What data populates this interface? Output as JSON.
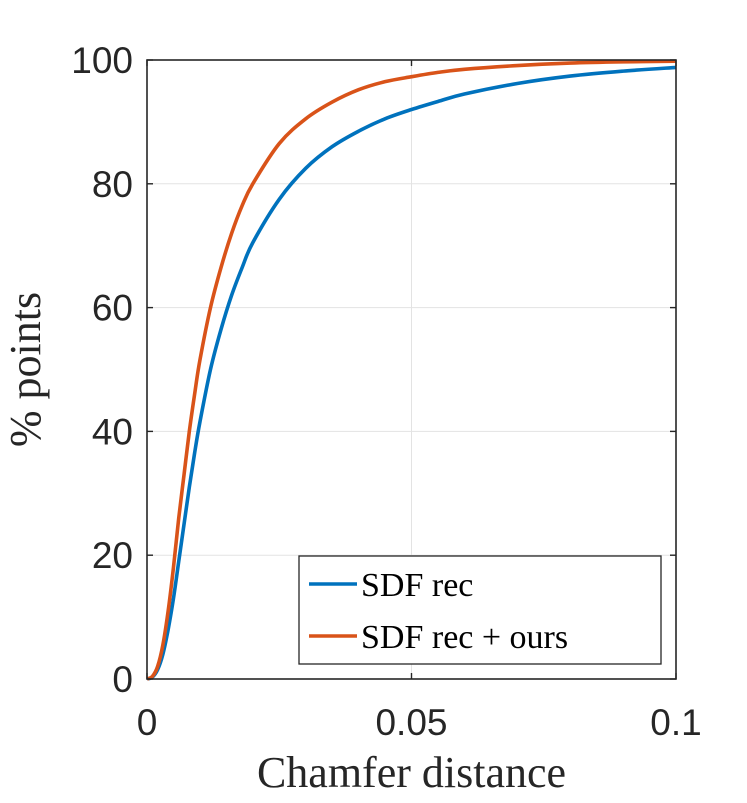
{
  "chart_data": {
    "type": "line",
    "xlabel": "Chamfer distance",
    "ylabel": "% points",
    "xlim": [
      0,
      0.1
    ],
    "ylim": [
      0,
      100
    ],
    "x_ticks": [
      0,
      0.05,
      0.1
    ],
    "x_tick_labels": [
      "0",
      "0.05",
      "0.1"
    ],
    "y_ticks": [
      0,
      20,
      40,
      60,
      80,
      100
    ],
    "y_tick_labels": [
      "0",
      "20",
      "40",
      "60",
      "80",
      "100"
    ],
    "grid": true,
    "legend_position": "bottom-right",
    "series": [
      {
        "name": "SDF rec",
        "color": "#0072BD",
        "x": [
          0,
          0.001,
          0.002,
          0.003,
          0.004,
          0.005,
          0.006,
          0.007,
          0.008,
          0.009,
          0.01,
          0.012,
          0.014,
          0.016,
          0.018,
          0.02,
          0.025,
          0.03,
          0.035,
          0.04,
          0.045,
          0.05,
          0.055,
          0.06,
          0.07,
          0.08,
          0.09,
          0.1
        ],
        "y": [
          0,
          0.3,
          1.5,
          4,
          8,
          13,
          19,
          25,
          31,
          36.5,
          41.5,
          50,
          56.5,
          62,
          66.5,
          70.5,
          77.5,
          82.5,
          86,
          88.5,
          90.5,
          92,
          93.3,
          94.5,
          96.2,
          97.4,
          98.2,
          98.8
        ]
      },
      {
        "name": "SDF rec + ours",
        "color": "#D95319",
        "x": [
          0,
          0.001,
          0.002,
          0.003,
          0.004,
          0.005,
          0.006,
          0.007,
          0.008,
          0.009,
          0.01,
          0.012,
          0.014,
          0.016,
          0.018,
          0.02,
          0.025,
          0.03,
          0.035,
          0.04,
          0.045,
          0.05,
          0.055,
          0.06,
          0.07,
          0.08,
          0.09,
          0.1
        ],
        "y": [
          0,
          0.4,
          2,
          5.5,
          11,
          18,
          26,
          33,
          40,
          46,
          51.5,
          60,
          66.5,
          72,
          76.5,
          80,
          86.5,
          90.5,
          93.2,
          95.2,
          96.5,
          97.3,
          98,
          98.5,
          99.1,
          99.5,
          99.7,
          99.8
        ]
      }
    ]
  }
}
